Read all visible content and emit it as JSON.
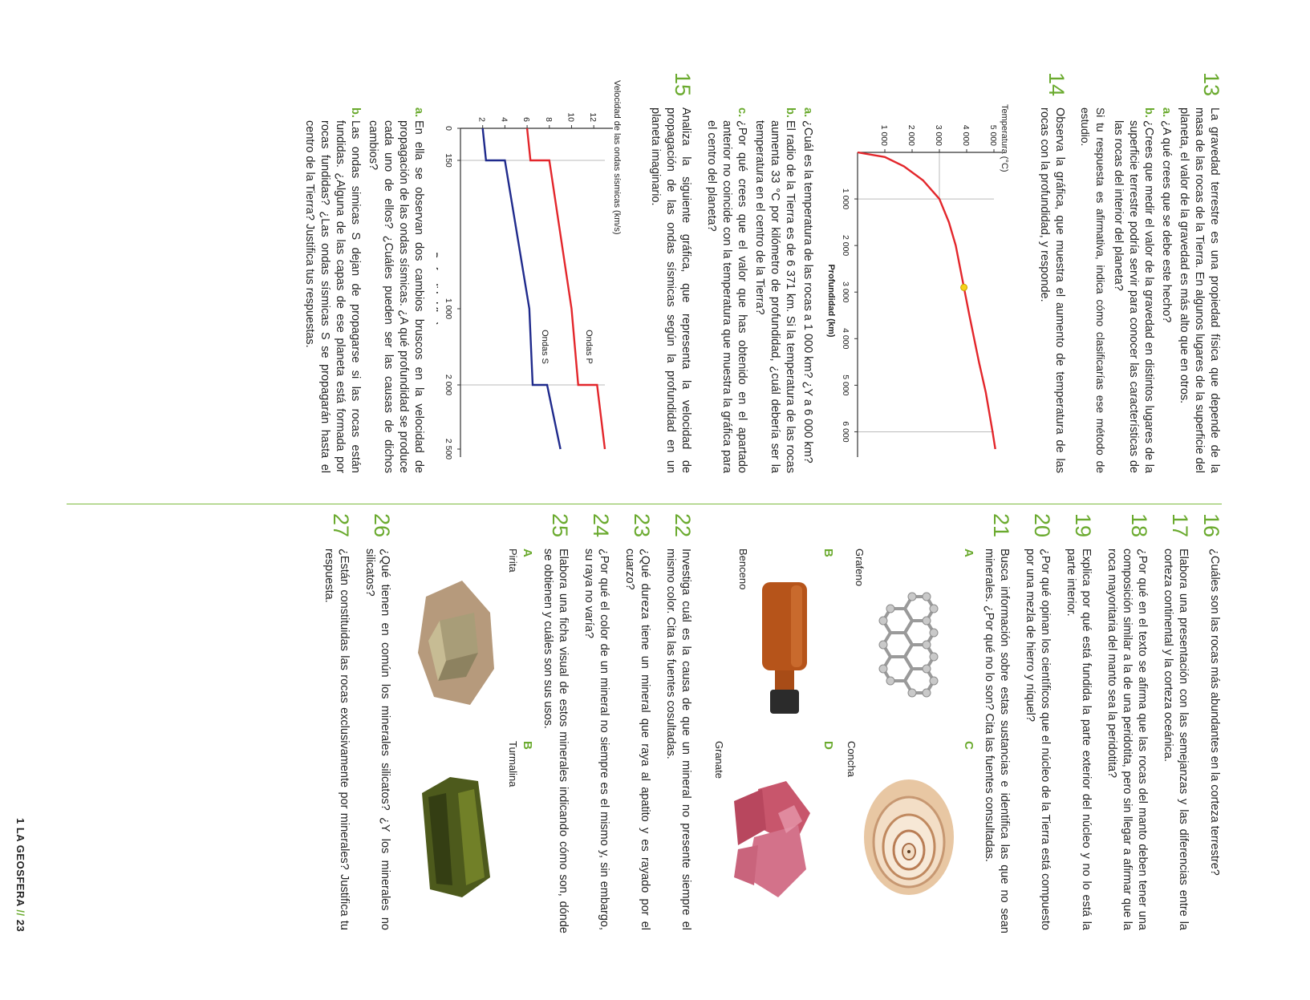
{
  "left_column": {
    "q13": {
      "number": "13",
      "text": "La gravedad terrestre es una propiedad física que depende de la masa de las rocas de la Tierra. En algunos lugares de la superficie del planeta, el valor de la gravedad es más alto que en otros.",
      "a": "¿A qué crees que se debe este hecho?",
      "b": "¿Crees que medir el valor de la gravedad en distintos lugares de la superficie terrestre podría servir para conocer las características de las rocas del interior del planeta?",
      "note": "Si tu respuesta es afirmativa, indica cómo clasificarías ese método de estudio."
    },
    "q14": {
      "number": "14",
      "text": "Observa la gráfica, que muestra el aumento de temperatura de las rocas con la profundidad, y responde.",
      "a": "¿Cuál es la temperatura de las rocas a 1 000 km? ¿Y a 6 000 km?",
      "b": "El radio de la Tierra es de 6 371 km. Si la temperatura de las rocas aumenta 33 °C por kilómetro de profundidad, ¿cuál debería ser la temperatura en el centro de la Tierra?",
      "c": "¿Por qué crees que el valor que has obtenido en el apartado anterior no coincide con la temperatura que muestra la gráfica para el centro del planeta?"
    },
    "q15": {
      "number": "15",
      "text": "Analiza la siguiente gráfica, que representa la velocidad de propagación de las ondas sísmicas según la profundidad en un planeta imaginario.",
      "a": "En ella se observan dos cambios bruscos en la velocidad de propagación de las ondas sísmicas. ¿A qué profundidad se produce cada uno de ellos? ¿Cuáles pueden ser las causas de dichos cambios?",
      "b": "Las ondas simicas S dejan de propagarse si las rocas están fundidas. ¿Alguna de las capas de ese planeta está formada por rocas fundidas? ¿Las ondas sísmicas S se propagarán hasta el centro de la Tierra? Justifica tus respuestas."
    }
  },
  "labels": {
    "a": "a.",
    "b": "b.",
    "c": "c."
  },
  "chart_data": [
    {
      "type": "line",
      "xlabel": "Profundidad (km)",
      "ylabel": "Temperatura (°C)",
      "xlim": [
        0,
        6371
      ],
      "ylim": [
        0,
        5000
      ],
      "xticks": [
        "1 000",
        "2 000",
        "3 000",
        "4 000",
        "5 000",
        "6 000"
      ],
      "yticks": [
        "1 000",
        "2 000",
        "3 000",
        "4 000",
        "5 000"
      ],
      "x": [
        0,
        100,
        300,
        600,
        1000,
        1500,
        2000,
        2900,
        3500,
        4500,
        5150,
        6000,
        6371
      ],
      "values": [
        0,
        1000,
        1700,
        2400,
        3000,
        3350,
        3600,
        3900,
        4100,
        4450,
        4700,
        4950,
        5050
      ],
      "grid": "dashed at 1 000 km",
      "color": "#e3262b"
    },
    {
      "type": "line",
      "xlabel": "Profundidad (km)",
      "ylabel": "Velocidad de las ondas sísmicas (km/s)",
      "xticks": [
        "0",
        "150",
        "1 000",
        "2 000",
        "2 500"
      ],
      "yticks": [
        "2",
        "4",
        "6",
        "8",
        "10",
        "12"
      ],
      "ylim": [
        0,
        13
      ],
      "series": [
        {
          "name": "Ondas P",
          "color": "#e3262b",
          "x": [
            0,
            150,
            150,
            1000,
            2000,
            2000,
            2500
          ],
          "values": [
            6,
            6.3,
            8,
            10,
            10.6,
            12.3,
            13
          ]
        },
        {
          "name": "Ondas S",
          "color": "#1f2a8c",
          "x": [
            0,
            150,
            150,
            1000,
            2000,
            2000,
            2500
          ],
          "values": [
            2,
            2.3,
            4,
            6.2,
            6.5,
            7.8,
            9
          ]
        }
      ]
    }
  ],
  "right_column": {
    "q16": {
      "number": "16",
      "text": "¿Cuáles son las rocas más abundantes en la corteza terrestre?"
    },
    "q17": {
      "number": "17",
      "text": "Elabora una presentación con las semejanzas y las diferencias entre la corteza continental y la corteza oceánica."
    },
    "q18": {
      "number": "18",
      "text": "¿Por qué en el texto se afirma que las rocas del manto deben tener una composición similar a la de una peridotita, pero sin llegar a afirmar que la roca mayoritaria del manto sea la peridotita?"
    },
    "q19": {
      "number": "19",
      "text": "Explica por qué está fundida la parte exterior del núcleo y no lo está la parte interior."
    },
    "q20": {
      "number": "20",
      "text": "¿Por qué opinan los científicos que el núcleo de la Tierra está compuesto por una mezla de hierro y níquel?"
    },
    "q21": {
      "number": "21",
      "text": "Busca información sobre estas sustancias e identifica las que no sean minerales. ¿Por qué no lo son? Cita las fuentes consultadas.",
      "images": [
        {
          "letter": "A",
          "caption": "Grafeno"
        },
        {
          "letter": "C",
          "caption": "Concha"
        },
        {
          "letter": "B",
          "caption": "Benceno"
        },
        {
          "letter": "D",
          "caption": "Granate"
        }
      ]
    },
    "q22": {
      "number": "22",
      "text": "Investiga cuál es la causa de que un mineral no presente siempre el mismo color. Cita las fuentes cosultadas."
    },
    "q23": {
      "number": "23",
      "text": "¿Qué dureza tiene un mineral que raya al apatito y es rayado por el cuarzo?"
    },
    "q24": {
      "number": "24",
      "text": "¿Por qué el color de un mineral no siempre es el mismo y, sin embargo, su raya no varía?"
    },
    "q25": {
      "number": "25",
      "text": "Elabora una ficha visual de estos minerales indicando cómo son, dónde se obtienen y cuáles son sus usos.",
      "images": [
        {
          "letter": "A",
          "caption": "Pirita"
        },
        {
          "letter": "B",
          "caption": "Turmalina"
        }
      ]
    },
    "q26": {
      "number": "26",
      "text": "¿Qué tienen en común los minerales silicatos? ¿Y los minerales no silicatos?"
    },
    "q27": {
      "number": "27",
      "text": "¿Están constituidas las rocas exclusivamente por minerales? Justifica tu respuesta."
    }
  },
  "footer": {
    "chapter": "1 LA GEOSFERA",
    "separator": "//",
    "page": "23"
  }
}
